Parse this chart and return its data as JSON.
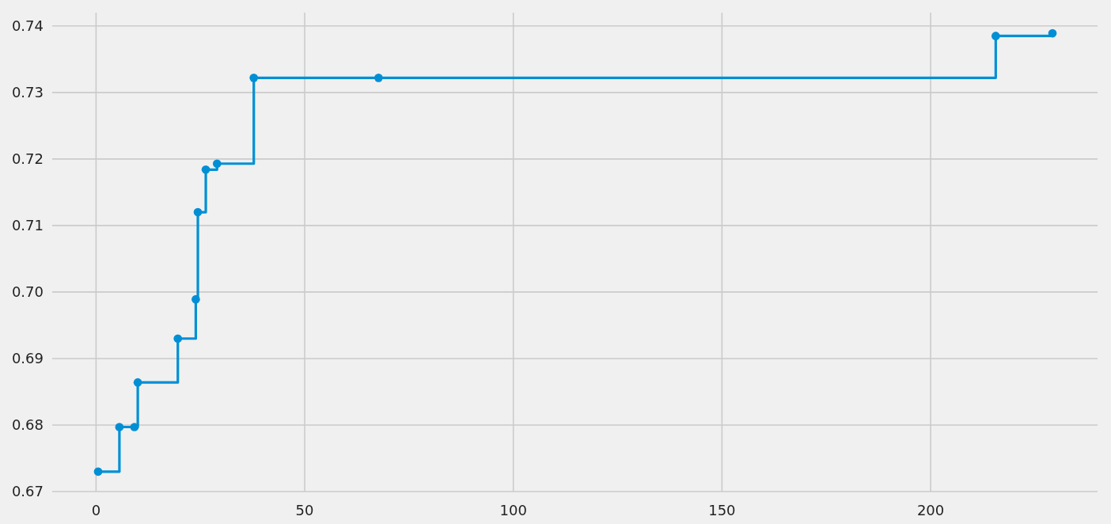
{
  "chart_data": {
    "type": "step",
    "x": [
      0.5,
      5.6,
      9.2,
      10.0,
      19.6,
      23.9,
      24.4,
      26.3,
      29.0,
      37.8,
      67.7,
      215.6,
      229.2
    ],
    "values": [
      0.673,
      0.6797,
      0.6797,
      0.6864,
      0.693,
      0.6989,
      0.712,
      0.7184,
      0.7193,
      0.7322,
      0.7322,
      0.7385,
      0.7389
    ],
    "color": "#008fd5",
    "marker": "circle",
    "line_style": "solid",
    "grid": true,
    "xlim": [
      -10.5,
      240
    ],
    "ylim": [
      0.67,
      0.742
    ],
    "xticks": [
      0,
      50,
      100,
      150,
      200
    ],
    "yticks": [
      0.67,
      0.68,
      0.69,
      {
        "value": 0.7,
        "label": "0.70"
      },
      0.71,
      0.72,
      0.73,
      0.74
    ]
  }
}
